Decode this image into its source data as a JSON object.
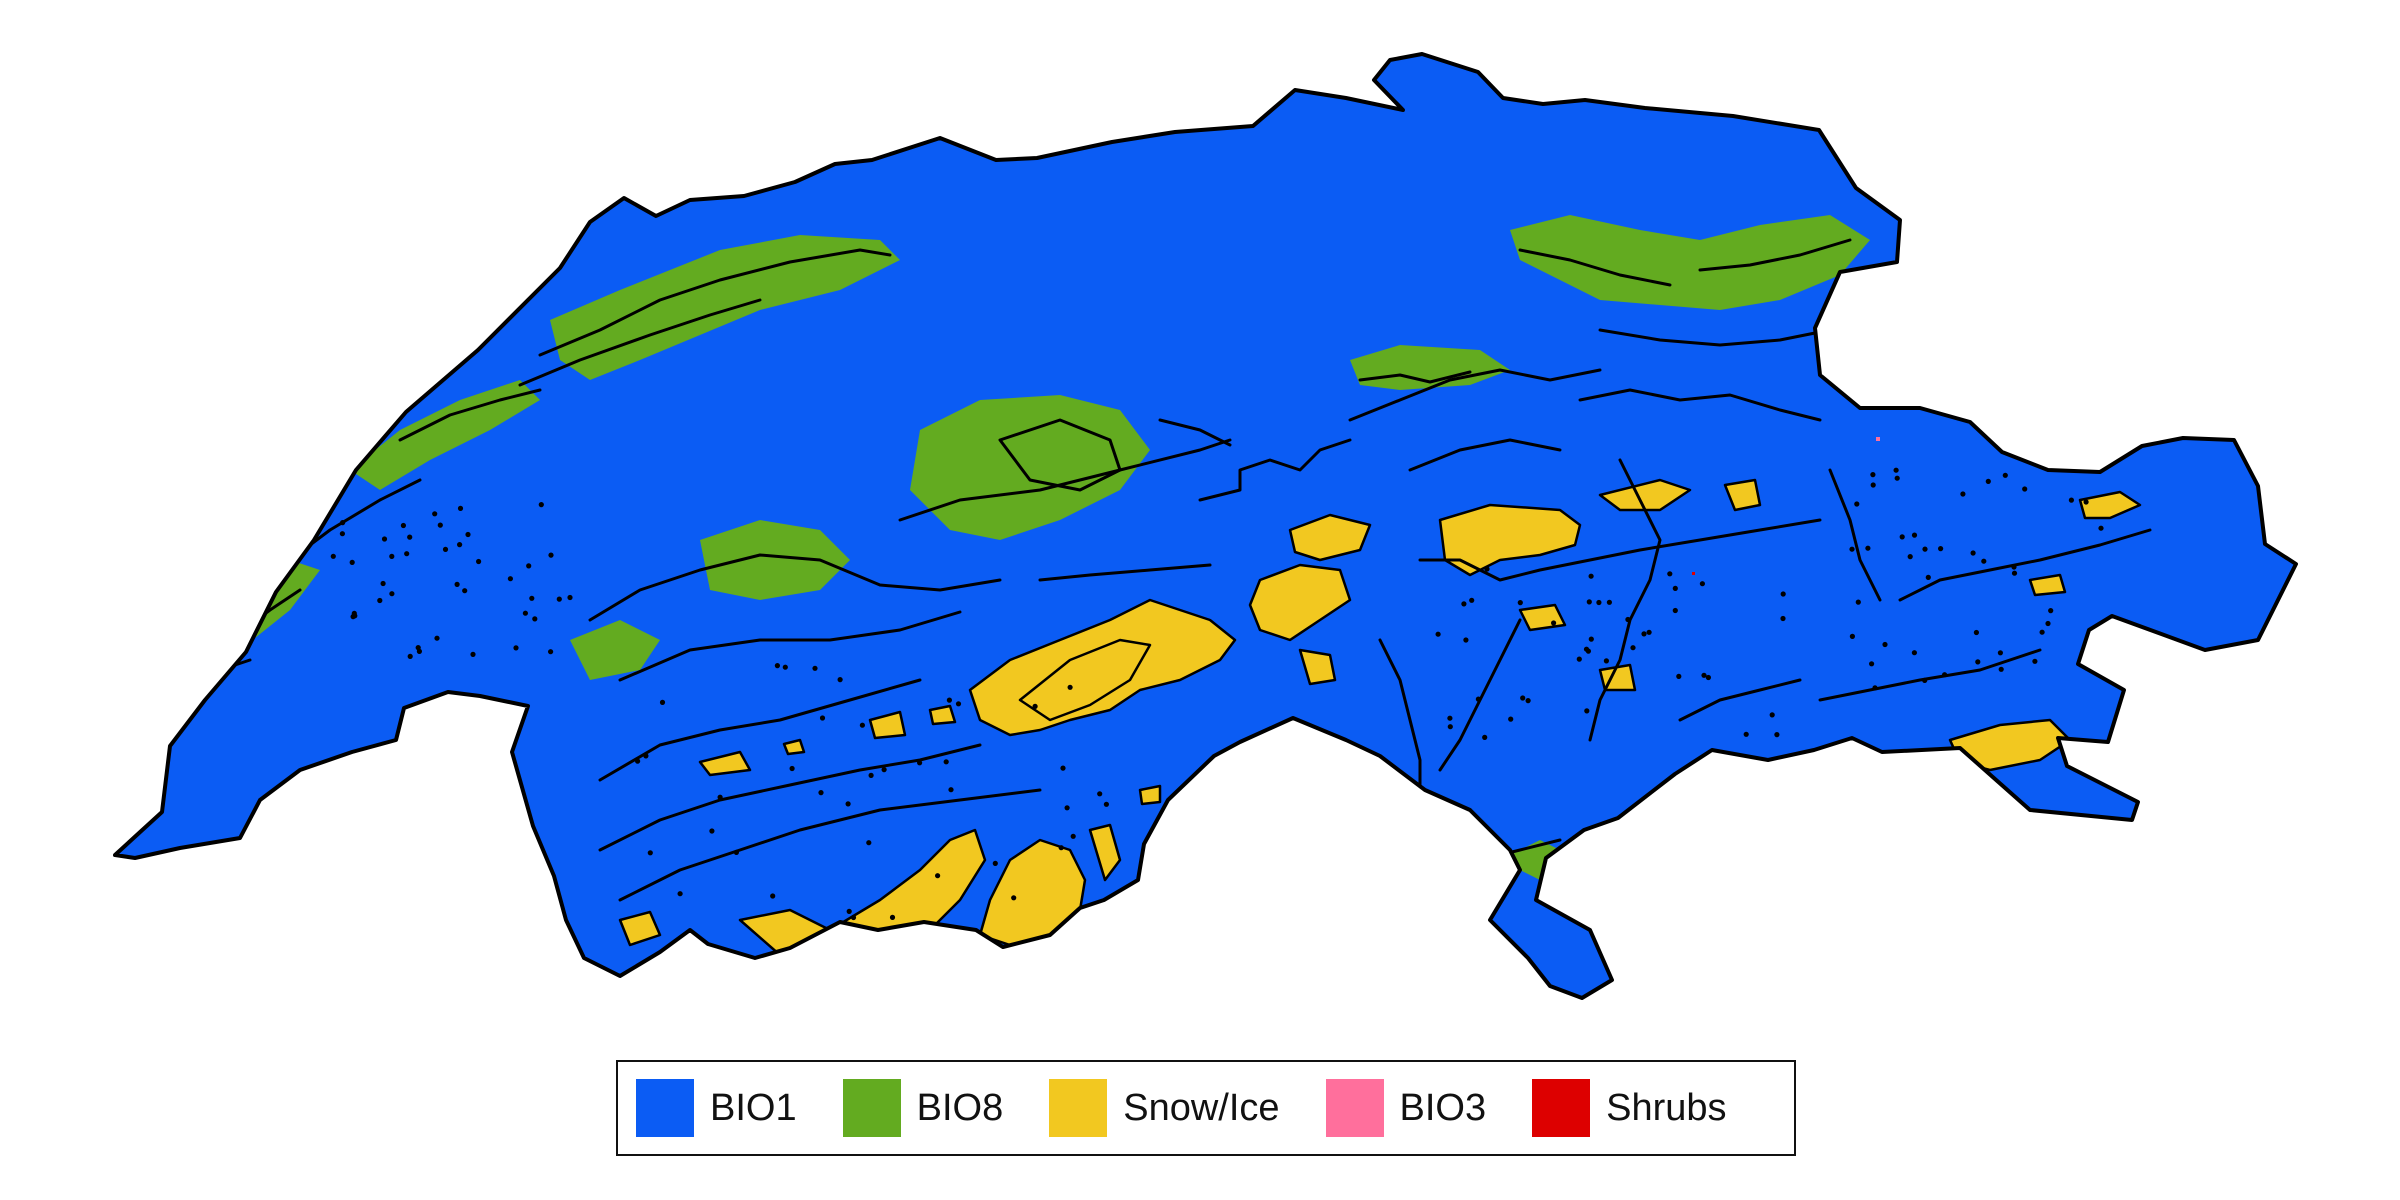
{
  "map": {
    "colors": {
      "background": "#ffffff",
      "bio1": "#0b5cf4",
      "bio8": "#63ab20",
      "snow_ice": "#f2c820",
      "bio3": "#ff6f9c",
      "shrubs": "#dd0000",
      "border": "#000000"
    }
  },
  "legend": {
    "items": [
      {
        "label": "BIO1",
        "color": "#0b5cf4"
      },
      {
        "label": "BIO8",
        "color": "#63ab20"
      },
      {
        "label": "Snow/Ice",
        "color": "#f2c820"
      },
      {
        "label": "BIO3",
        "color": "#ff6f9c"
      },
      {
        "label": "Shrubs",
        "color": "#dd0000"
      }
    ]
  }
}
